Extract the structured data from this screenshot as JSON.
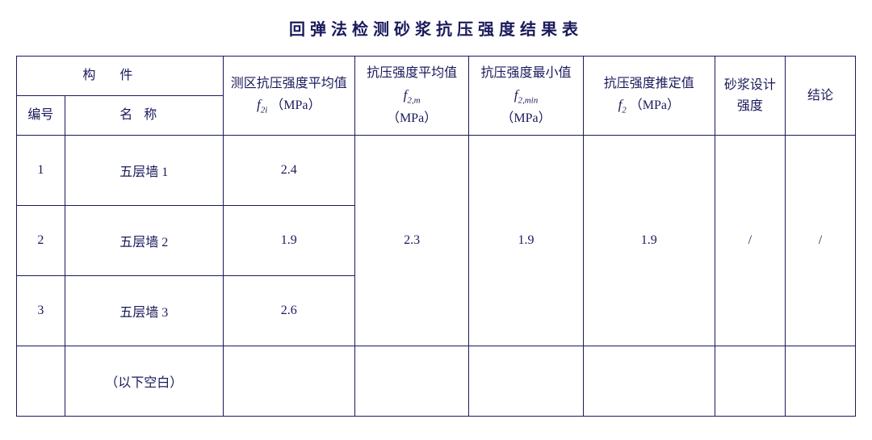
{
  "title": "回弹法检测砂浆抗压强度结果表",
  "headers": {
    "component": "构件",
    "no": "编号",
    "name": "名称",
    "zone_strength_line1": "测区抗压强度平均值",
    "zone_unit": "（MPa）",
    "avg_strength_line1": "抗压强度平均值",
    "avg_unit": "（MPa）",
    "min_strength_line1": "抗压强度最小值",
    "min_unit": "（MPa）",
    "est_strength_line1": "抗压强度推定值",
    "est_unit": "（MPa）",
    "design_strength": "砂浆设计强度",
    "conclusion": "结论",
    "symbols": {
      "f2i": "f",
      "f2i_sub": "2i",
      "f2m": "f",
      "f2m_sub": "2,m",
      "f2min": "f",
      "f2min_sub": "2,min",
      "f2": "f",
      "f2_sub": "2"
    }
  },
  "rows": [
    {
      "no": "1",
      "name": "五层墙 1",
      "zone": "2.4"
    },
    {
      "no": "2",
      "name": "五层墙 2",
      "zone": "1.9"
    },
    {
      "no": "3",
      "name": "五层墙 3",
      "zone": "2.6"
    }
  ],
  "merged": {
    "avg": "2.3",
    "min": "1.9",
    "est": "1.9",
    "design": "/",
    "conclusion": "/"
  },
  "blank_note": "（以下空白）"
}
